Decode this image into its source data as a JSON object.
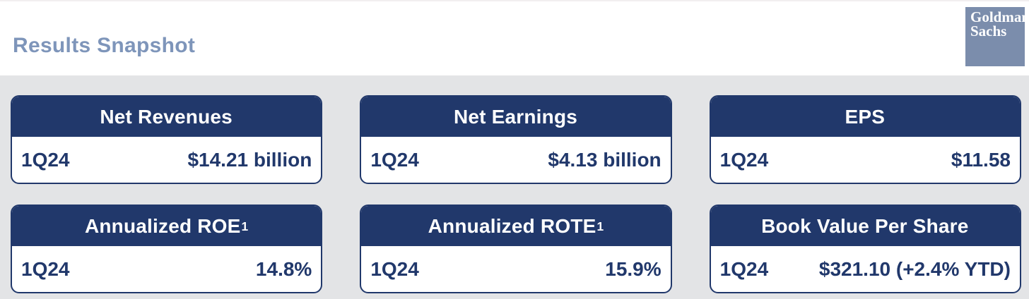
{
  "header": {
    "title": "Results Snapshot",
    "logo_line1": "Goldman",
    "logo_line2": "Sachs"
  },
  "colors": {
    "navy": "#21386b",
    "title_blue": "#7e95ba",
    "logo_blue": "#7b8dac",
    "band_gray": "#e3e4e6",
    "card_bg": "#ffffff"
  },
  "cards": [
    {
      "title": "Net Revenues",
      "title_sup": "",
      "period": "1Q24",
      "value": "$14.21 billion"
    },
    {
      "title": "Net Earnings",
      "title_sup": "",
      "period": "1Q24",
      "value": "$4.13 billion"
    },
    {
      "title": "EPS",
      "title_sup": "",
      "period": "1Q24",
      "value": "$11.58"
    },
    {
      "title": "Annualized ROE",
      "title_sup": "1",
      "period": "1Q24",
      "value": "14.8%"
    },
    {
      "title": "Annualized ROTE",
      "title_sup": "1",
      "period": "1Q24",
      "value": "15.9%"
    },
    {
      "title": "Book Value Per Share",
      "title_sup": "",
      "period": "1Q24",
      "value": "$321.10 (+2.4% YTD)"
    }
  ]
}
